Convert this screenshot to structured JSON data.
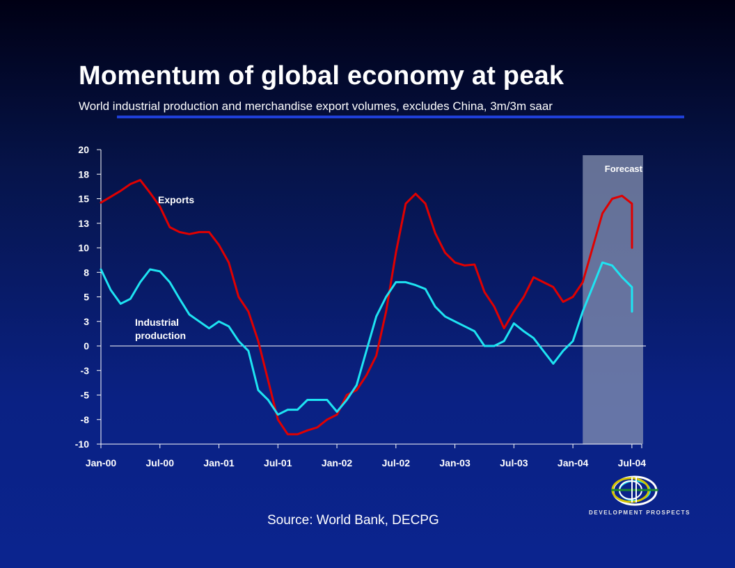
{
  "slide": {
    "title": "Momentum of global economy at peak",
    "subtitle": "World industrial production and merchandise export volumes, excludes China, 3m/3m saar",
    "source": "Source: World Bank, DECPG",
    "logo_text": "DEVELOPMENT PROSPECTS"
  },
  "colors": {
    "exports": "#e00000",
    "industrial": "#1ee4f2",
    "forecast_band": "#8a96b4",
    "rule": "#1f3fd8"
  },
  "chart_data": {
    "type": "line",
    "title": "",
    "xlabel": "",
    "ylabel": "",
    "ylim": [
      -10,
      20
    ],
    "y_ticks": [
      20,
      18,
      15,
      13,
      10,
      8,
      5,
      3,
      0,
      -3,
      -5,
      -8,
      -10
    ],
    "x_range": [
      "2000-01",
      "2004-08"
    ],
    "x_ticks": [
      {
        "date": "2000-01",
        "label": "Jan-00"
      },
      {
        "date": "2000-07",
        "label": "Jul-00"
      },
      {
        "date": "2001-01",
        "label": "Jan-01"
      },
      {
        "date": "2001-07",
        "label": "Jul-01"
      },
      {
        "date": "2002-01",
        "label": "Jan-02"
      },
      {
        "date": "2002-07",
        "label": "Jul-02"
      },
      {
        "date": "2003-01",
        "label": "Jan-03"
      },
      {
        "date": "2003-07",
        "label": "Jul-03"
      },
      {
        "date": "2004-01",
        "label": "Jan-04"
      },
      {
        "date": "2004-07",
        "label": "Jul-04"
      }
    ],
    "forecast": {
      "label": "Forecast",
      "start": "2004-02",
      "end": "2004-08"
    },
    "annotations": [
      {
        "text": "Exports",
        "series": "exports"
      },
      {
        "text": "Industrial production",
        "series": "industrial"
      }
    ],
    "series": [
      {
        "key": "exports",
        "points": [
          [
            "2000-01",
            14.6
          ],
          [
            "2000-02",
            15.2
          ],
          [
            "2000-03",
            15.8
          ],
          [
            "2000-04",
            16.5
          ],
          [
            "2000-05",
            16.9
          ],
          [
            "2000-06",
            15.6
          ],
          [
            "2000-07",
            14.2
          ],
          [
            "2000-08",
            12.1
          ],
          [
            "2000-09",
            11.6
          ],
          [
            "2000-10",
            11.4
          ],
          [
            "2000-11",
            11.6
          ],
          [
            "2000-12",
            11.6
          ],
          [
            "2001-01",
            10.3
          ],
          [
            "2001-02",
            8.5
          ],
          [
            "2001-03",
            5.0
          ],
          [
            "2001-04",
            3.5
          ],
          [
            "2001-05",
            0.5
          ],
          [
            "2001-06",
            -3.5
          ],
          [
            "2001-07",
            -7.5
          ],
          [
            "2001-08",
            -9.0
          ],
          [
            "2001-09",
            -9.0
          ],
          [
            "2001-10",
            -8.6
          ],
          [
            "2001-11",
            -8.3
          ],
          [
            "2001-12",
            -7.5
          ],
          [
            "2002-01",
            -7.0
          ],
          [
            "2002-02",
            -5.0
          ],
          [
            "2002-03",
            -4.5
          ],
          [
            "2002-04",
            -3.0
          ],
          [
            "2002-05",
            -1.0
          ],
          [
            "2002-06",
            3.5
          ],
          [
            "2002-07",
            9.5
          ],
          [
            "2002-08",
            14.5
          ],
          [
            "2002-09",
            15.5
          ],
          [
            "2002-10",
            14.5
          ],
          [
            "2002-11",
            11.5
          ],
          [
            "2002-12",
            9.5
          ],
          [
            "2003-01",
            8.5
          ],
          [
            "2003-02",
            8.2
          ],
          [
            "2003-03",
            8.3
          ],
          [
            "2003-04",
            5.5
          ],
          [
            "2003-05",
            4.0
          ],
          [
            "2003-06",
            1.8
          ],
          [
            "2003-07",
            3.5
          ],
          [
            "2003-08",
            5.0
          ],
          [
            "2003-09",
            7.0
          ],
          [
            "2003-10",
            6.5
          ],
          [
            "2003-11",
            6.0
          ],
          [
            "2003-12",
            4.5
          ],
          [
            "2004-01",
            5.0
          ],
          [
            "2004-02",
            6.5
          ],
          [
            "2004-03",
            10.0
          ],
          [
            "2004-04",
            13.5
          ],
          [
            "2004-05",
            15.0
          ],
          [
            "2004-06",
            15.3
          ],
          [
            "2004-07",
            14.5
          ],
          [
            "2004-08",
            12.0
          ],
          [
            "2004-09",
            10.0
          ]
        ]
      },
      {
        "key": "industrial",
        "points": [
          [
            "2000-01",
            7.8
          ],
          [
            "2000-02",
            5.7
          ],
          [
            "2000-03",
            4.3
          ],
          [
            "2000-04",
            4.8
          ],
          [
            "2000-05",
            6.5
          ],
          [
            "2000-06",
            7.8
          ],
          [
            "2000-07",
            7.6
          ],
          [
            "2000-08",
            6.5
          ],
          [
            "2000-09",
            4.8
          ],
          [
            "2000-10",
            3.2
          ],
          [
            "2000-11",
            2.5
          ],
          [
            "2000-12",
            1.8
          ],
          [
            "2001-01",
            2.5
          ],
          [
            "2001-02",
            2.0
          ],
          [
            "2001-03",
            0.5
          ],
          [
            "2001-04",
            -0.5
          ],
          [
            "2001-05",
            -4.5
          ],
          [
            "2001-06",
            -5.5
          ],
          [
            "2001-07",
            -7.0
          ],
          [
            "2001-08",
            -6.5
          ],
          [
            "2001-09",
            -6.5
          ],
          [
            "2001-10",
            -5.5
          ],
          [
            "2001-11",
            -5.5
          ],
          [
            "2001-12",
            -5.5
          ],
          [
            "2002-01",
            -6.7
          ],
          [
            "2002-02",
            -5.5
          ],
          [
            "2002-03",
            -4.0
          ],
          [
            "2002-04",
            -0.5
          ],
          [
            "2002-05",
            3.0
          ],
          [
            "2002-06",
            5.0
          ],
          [
            "2002-07",
            6.5
          ],
          [
            "2002-08",
            6.5
          ],
          [
            "2002-09",
            6.2
          ],
          [
            "2002-10",
            5.8
          ],
          [
            "2002-11",
            4.0
          ],
          [
            "2002-12",
            3.0
          ],
          [
            "2003-01",
            2.5
          ],
          [
            "2003-02",
            2.0
          ],
          [
            "2003-03",
            1.5
          ],
          [
            "2003-04",
            0.0
          ],
          [
            "2003-05",
            0.0
          ],
          [
            "2003-06",
            0.5
          ],
          [
            "2003-07",
            2.3
          ],
          [
            "2003-08",
            1.5
          ],
          [
            "2003-09",
            0.8
          ],
          [
            "2003-10",
            -0.5
          ],
          [
            "2003-11",
            -1.8
          ],
          [
            "2003-12",
            -0.5
          ],
          [
            "2004-01",
            0.5
          ],
          [
            "2004-02",
            3.5
          ],
          [
            "2004-03",
            6.0
          ],
          [
            "2004-04",
            8.5
          ],
          [
            "2004-05",
            8.2
          ],
          [
            "2004-06",
            7.0
          ],
          [
            "2004-07",
            6.0
          ],
          [
            "2004-08",
            5.5
          ],
          [
            "2004-09",
            3.5
          ]
        ]
      }
    ]
  }
}
